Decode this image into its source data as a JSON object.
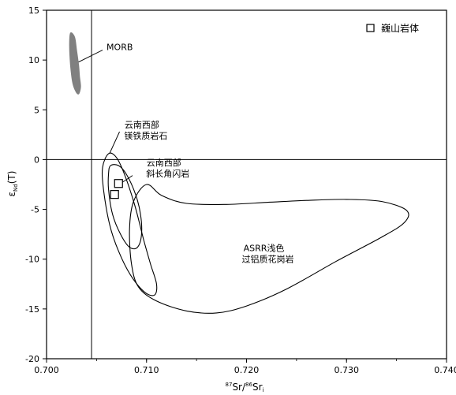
{
  "chart_data": {
    "type": "scatter",
    "xlabel_parts": {
      "sup1": "87",
      "base1": "Sr/",
      "sup2": "86",
      "base2": "Sr",
      "sub": "i"
    },
    "ylabel_parts": {
      "base": "ε",
      "sub": "Nd",
      "tail": "(T)"
    },
    "xlim": [
      0.7,
      0.74
    ],
    "ylim": [
      -20,
      15
    ],
    "x_ticks": [
      0.7,
      0.71,
      0.72,
      0.73,
      0.74
    ],
    "x_tick_labels": [
      "0.700",
      "0.710",
      "0.720",
      "0.730",
      "0.740"
    ],
    "y_ticks": [
      15,
      10,
      5,
      0,
      -5,
      -10,
      -15,
      -20
    ],
    "y_tick_labels": [
      "15",
      "10",
      "5",
      "0",
      "-5",
      "-10",
      "-15",
      "-20"
    ],
    "reference_lines": {
      "x": 0.7045,
      "y": 0
    },
    "legend": {
      "marker": "open-square",
      "label": "巍山岩体",
      "position": "top-right"
    },
    "series": [
      {
        "name": "巍山岩体",
        "marker": "open-square",
        "points": [
          [
            0.7072,
            -2.4
          ],
          [
            0.7068,
            -3.5
          ]
        ]
      }
    ],
    "fields": [
      {
        "key": "morb",
        "label_lines": [
          "MORB"
        ],
        "fill": "#808080",
        "outline": [
          [
            0.7024,
            12.7
          ],
          [
            0.7028,
            12.3
          ],
          [
            0.703,
            11.0
          ],
          [
            0.7032,
            9.5
          ],
          [
            0.7033,
            8.3
          ],
          [
            0.7034,
            7.3
          ],
          [
            0.7032,
            6.6
          ],
          [
            0.7029,
            6.9
          ],
          [
            0.7026,
            7.8
          ],
          [
            0.7024,
            9.5
          ],
          [
            0.7023,
            11.5
          ],
          [
            0.7024,
            12.7
          ]
        ]
      },
      {
        "key": "mafic",
        "label_lines": [
          "云南西部",
          "镁铁质岩石"
        ],
        "fill": "none",
        "outline": [
          [
            0.7062,
            0.6
          ],
          [
            0.707,
            0.2
          ],
          [
            0.7078,
            -1.5
          ],
          [
            0.7088,
            -4.5
          ],
          [
            0.7097,
            -8.0
          ],
          [
            0.7104,
            -10.5
          ],
          [
            0.711,
            -12.5
          ],
          [
            0.7108,
            -13.6
          ],
          [
            0.7098,
            -13.3
          ],
          [
            0.7084,
            -11.6
          ],
          [
            0.7072,
            -9.2
          ],
          [
            0.7063,
            -6.5
          ],
          [
            0.7057,
            -3.0
          ],
          [
            0.7056,
            -0.8
          ],
          [
            0.7062,
            0.6
          ]
        ]
      },
      {
        "key": "tonalite",
        "label_lines": [
          "云南西部",
          "斜长角闪岩"
        ],
        "fill": "none",
        "outline": [
          [
            0.7064,
            -0.6
          ],
          [
            0.7072,
            -0.6
          ],
          [
            0.708,
            -1.5
          ],
          [
            0.7089,
            -3.5
          ],
          [
            0.7094,
            -5.5
          ],
          [
            0.7095,
            -7.5
          ],
          [
            0.7091,
            -8.8
          ],
          [
            0.7083,
            -8.8
          ],
          [
            0.7074,
            -7.5
          ],
          [
            0.7066,
            -5.5
          ],
          [
            0.7062,
            -3.0
          ],
          [
            0.7062,
            -1.4
          ],
          [
            0.7064,
            -0.6
          ]
        ]
      },
      {
        "key": "asrr",
        "label_lines": [
          "ASRR浅色",
          "过铝质花岗岩"
        ],
        "fill": "none",
        "outline": [
          [
            0.71,
            -2.5
          ],
          [
            0.7115,
            -3.6
          ],
          [
            0.714,
            -4.4
          ],
          [
            0.718,
            -4.5
          ],
          [
            0.722,
            -4.3
          ],
          [
            0.726,
            -4.1
          ],
          [
            0.73,
            -4.0
          ],
          [
            0.7335,
            -4.2
          ],
          [
            0.736,
            -5.1
          ],
          [
            0.7358,
            -6.3
          ],
          [
            0.7335,
            -7.8
          ],
          [
            0.729,
            -10.2
          ],
          [
            0.724,
            -13.0
          ],
          [
            0.72,
            -14.7
          ],
          [
            0.717,
            -15.4
          ],
          [
            0.714,
            -15.2
          ],
          [
            0.711,
            -14.2
          ],
          [
            0.7092,
            -12.8
          ],
          [
            0.7085,
            -10.5
          ],
          [
            0.7083,
            -7.0
          ],
          [
            0.7087,
            -4.2
          ],
          [
            0.71,
            -2.5
          ]
        ]
      }
    ],
    "annotations": [
      {
        "field": "morb",
        "leader": [
          [
            0.7032,
            9.8
          ],
          [
            0.7056,
            11.0
          ]
        ],
        "text_at": [
          0.706,
          11.0
        ]
      },
      {
        "field": "mafic",
        "leader": [
          [
            0.7063,
            0.6
          ],
          [
            0.7073,
            2.8
          ]
        ],
        "text_at": [
          0.7078,
          3.2
        ]
      },
      {
        "field": "tonalite",
        "leader": [
          [
            0.7074,
            -2.4
          ],
          [
            0.7086,
            -1.6
          ]
        ],
        "text_at": [
          0.71,
          -0.6
        ]
      },
      {
        "field": "asrr",
        "text_at": [
          0.72,
          -9.2
        ]
      }
    ]
  }
}
